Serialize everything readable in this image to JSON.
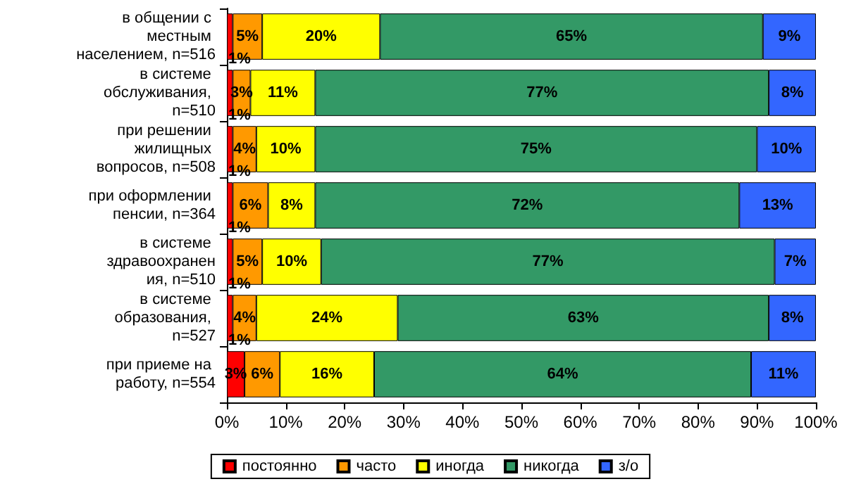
{
  "chart_data": {
    "type": "bar",
    "orientation": "horizontal",
    "stacked": true,
    "categories": [
      "в общении с местным населением, n=516",
      "в системе обслуживания, n=510",
      "при решении жилищных вопросов, n=508",
      "при оформлении пенсии, n=364",
      "в системе здравоохранения, n=510",
      "в системе образования, n=527",
      "при приеме на работу, n=554"
    ],
    "series": [
      {
        "name": "постоянно",
        "color": "#ff0000",
        "values": [
          1,
          1,
          1,
          1,
          1,
          1,
          3
        ],
        "value_labels": [
          "1%",
          "1%",
          "1%",
          "1%",
          "1%",
          "1%",
          "3%"
        ]
      },
      {
        "name": "часто",
        "color": "#ff9900",
        "values": [
          5,
          3,
          4,
          6,
          5,
          4,
          6
        ],
        "value_labels": [
          "5%",
          "3%",
          "4%",
          "6%",
          "5%",
          "4%",
          "6%"
        ]
      },
      {
        "name": "иногда",
        "color": "#ffff00",
        "values": [
          20,
          11,
          10,
          8,
          10,
          24,
          16
        ],
        "value_labels": [
          "20%",
          "11%",
          "10%",
          "8%",
          "10%",
          "24%",
          "16%"
        ]
      },
      {
        "name": "никогда",
        "color": "#339966",
        "values": [
          65,
          77,
          75,
          72,
          77,
          63,
          64
        ],
        "value_labels": [
          "65%",
          "77%",
          "75%",
          "72%",
          "77%",
          "63%",
          "64%"
        ]
      },
      {
        "name": "з/о",
        "color": "#3366ff",
        "values": [
          9,
          8,
          10,
          13,
          7,
          8,
          11
        ],
        "value_labels": [
          "9%",
          "8%",
          "10%",
          "13%",
          "7%",
          "8%",
          "11%"
        ]
      }
    ],
    "xlim": [
      0,
      100
    ],
    "xticks": [
      {
        "value": 0,
        "label": "0%"
      },
      {
        "value": 10,
        "label": "10%"
      },
      {
        "value": 20,
        "label": "20%"
      },
      {
        "value": 30,
        "label": "30%"
      },
      {
        "value": 40,
        "label": "40%"
      },
      {
        "value": 50,
        "label": "50%"
      },
      {
        "value": 60,
        "label": "60%"
      },
      {
        "value": 70,
        "label": "70%"
      },
      {
        "value": 80,
        "label": "80%"
      },
      {
        "value": 90,
        "label": "90%"
      },
      {
        "value": 100,
        "label": "100%"
      }
    ],
    "grid": false,
    "legend": "bottom"
  }
}
